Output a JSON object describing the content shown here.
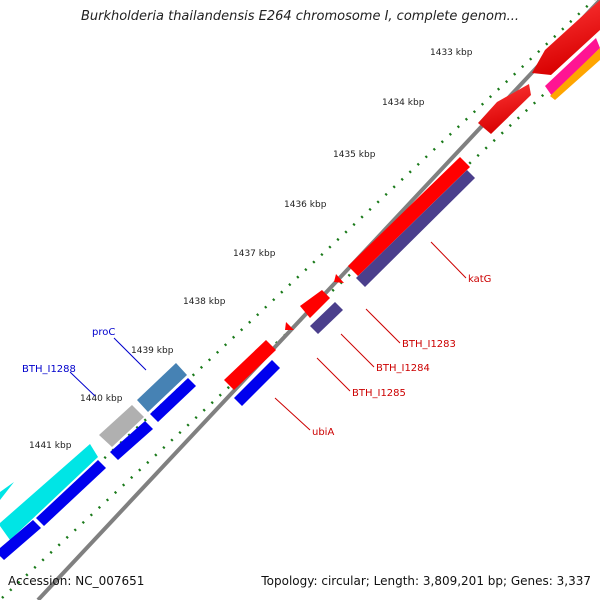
{
  "title": "Burkholderia thailandensis E264 chromosome I, complete genom...",
  "footer": {
    "accession": "Accession: NC_007651",
    "topology": "Topology: circular; Length: 3,809,201 bp; Genes: 3,337"
  },
  "ticks": [
    {
      "label": "1433 kbp"
    },
    {
      "label": "1434 kbp"
    },
    {
      "label": "1435 kbp"
    },
    {
      "label": "1436 kbp"
    },
    {
      "label": "1437 kbp"
    },
    {
      "label": "1438 kbp"
    },
    {
      "label": "1439 kbp"
    },
    {
      "label": "1440 kbp"
    },
    {
      "label": "1441 kbp"
    }
  ],
  "gene_labels": {
    "katG": "katG",
    "BTH_I1283": "BTH_I1283",
    "BTH_I1284": "BTH_I1284",
    "BTH_I1285": "BTH_I1285",
    "ubiA": "ubiA",
    "proC": "proC",
    "BTH_I1288": "BTH_I1288"
  },
  "colors": {
    "red_gene": "#ff0000",
    "blue_gene": "#0000ee",
    "slate_gene": "#4b3f8c",
    "cyan_gene": "#00e5e5",
    "steel_gene": "#4682b4",
    "grey_gene": "#b0b0b0",
    "magenta_gene": "#ff1493",
    "orange_gene": "#ffa500",
    "backbone": "#808080",
    "tick_green": "#1a7a1a",
    "label_red": "#cc0000",
    "label_blue": "#0000cc"
  }
}
